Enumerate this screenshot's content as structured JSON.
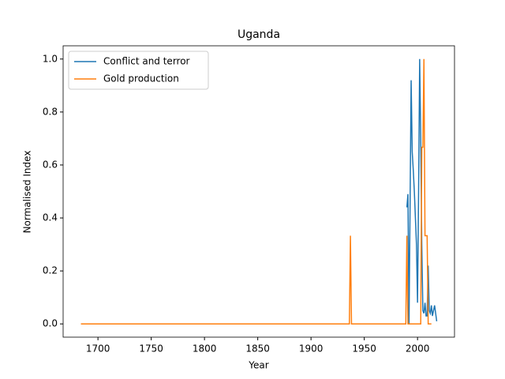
{
  "chart_data": {
    "type": "line",
    "title": "Uganda",
    "x_label": "Year",
    "y_label": "Normalised Index",
    "xlim": [
      1667.3,
      2034.7
    ],
    "ylim": [
      -0.05,
      1.05
    ],
    "xticks": [
      1700,
      1750,
      1800,
      1850,
      1900,
      1950,
      2000
    ],
    "yticks": [
      {
        "value": 0,
        "label": "0.0"
      },
      {
        "value": 0.2,
        "label": "0.2"
      },
      {
        "value": 0.4,
        "label": "0.4"
      },
      {
        "value": 0.6,
        "label": "0.6"
      },
      {
        "value": 0.8,
        "label": "0.8"
      },
      {
        "value": 1,
        "label": "1.0"
      }
    ],
    "legend": "upper left",
    "grid": false,
    "series": [
      {
        "name": "Conflict and terror",
        "color": "#1f77b4",
        "x": [
          1990,
          1991,
          1992,
          1993,
          1994,
          1995,
          1996,
          1997,
          1998,
          1999,
          2000,
          2001,
          2002,
          2003,
          2004,
          2005,
          2006,
          2007,
          2008,
          2009,
          2010,
          2011,
          2012,
          2013,
          2014,
          2015,
          2016,
          2017,
          2018
        ],
        "values": [
          0.44,
          0.49,
          0.0,
          0.45,
          0.92,
          0.65,
          0.58,
          0.5,
          0.4,
          0.3,
          0.08,
          0.5,
          1.0,
          0.7,
          0.3,
          0.05,
          0.04,
          0.08,
          0.03,
          0.03,
          0.22,
          0.05,
          0.04,
          0.07,
          0.03,
          0.05,
          0.07,
          0.04,
          0.01
        ]
      },
      {
        "name": "Gold production",
        "color": "#ff7f0e",
        "x": [
          1684,
          1936,
          1937,
          1938,
          1989,
          1990,
          1991,
          2003,
          2004,
          2005,
          2006,
          2007,
          2008,
          2009,
          2010,
          2013
        ],
        "values": [
          0,
          0,
          0.333,
          0,
          0,
          0.333,
          0,
          0,
          0.667,
          0.667,
          1.0,
          0.333,
          0.333,
          0.333,
          0,
          0
        ]
      }
    ]
  }
}
